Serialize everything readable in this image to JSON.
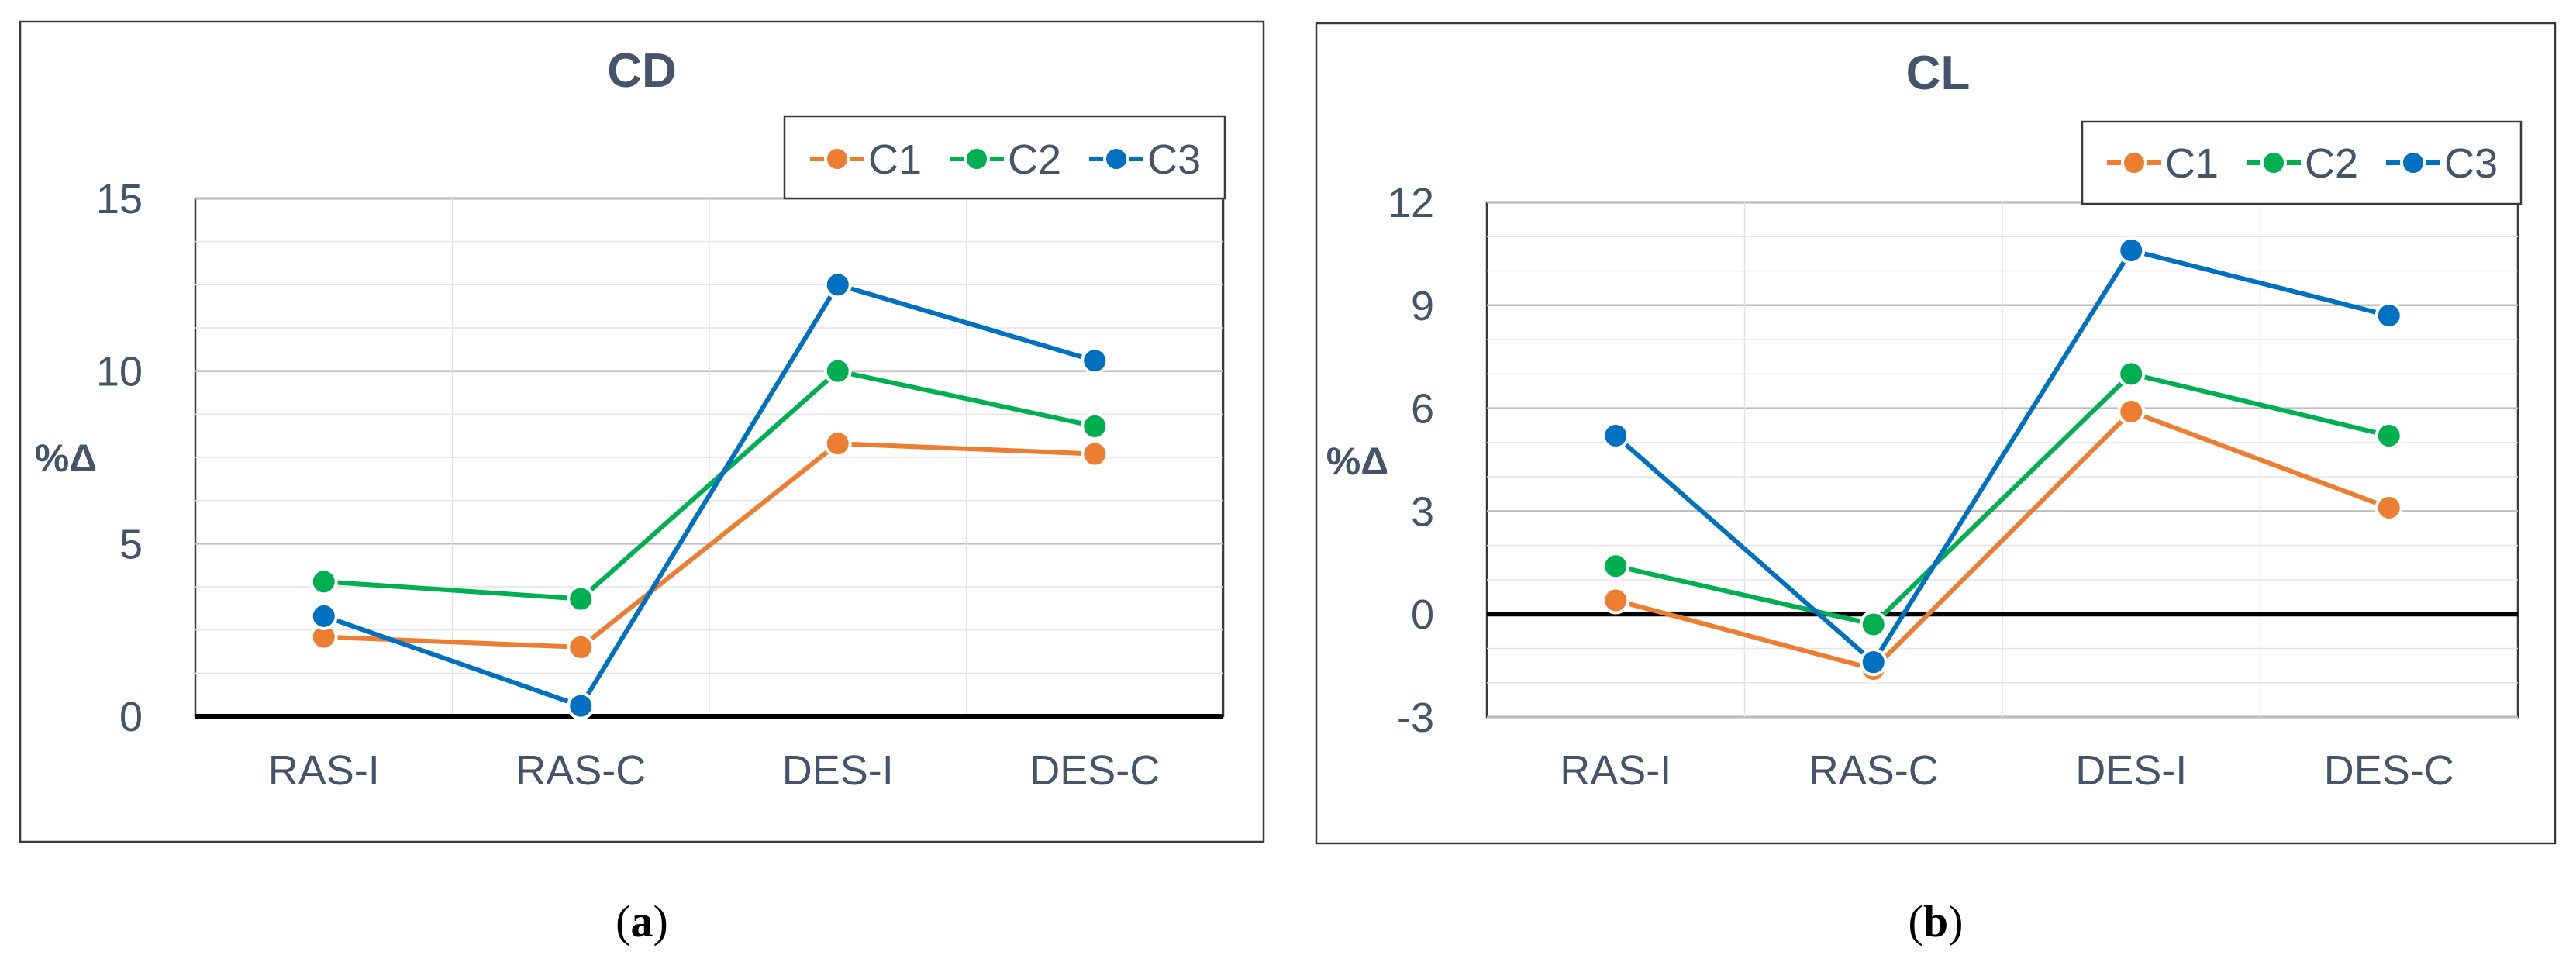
{
  "chart_data": [
    {
      "id": "cd",
      "type": "line",
      "title": "CD",
      "ylabel": "%Δ",
      "xlabel": "",
      "categories": [
        "RAS-I",
        "RAS-C",
        "DES-I",
        "DES-C"
      ],
      "ylim": [
        0,
        15
      ],
      "yticks": [
        0,
        5,
        10,
        15
      ],
      "yticklabels": [
        "0",
        "5",
        "10",
        "15"
      ],
      "minor_step": 1.25,
      "zero_line": 0,
      "grid": true,
      "legend_position": "top-right",
      "series": [
        {
          "name": "C1",
          "color": "#ed7d31",
          "values": [
            2.3,
            2.0,
            7.9,
            7.6
          ]
        },
        {
          "name": "C2",
          "color": "#00b050",
          "values": [
            3.9,
            3.4,
            10.0,
            8.4
          ]
        },
        {
          "name": "C3",
          "color": "#0070c0",
          "values": [
            2.9,
            0.3,
            12.5,
            10.3
          ]
        }
      ],
      "caption": "a"
    },
    {
      "id": "cl",
      "type": "line",
      "title": "CL",
      "ylabel": "%Δ",
      "xlabel": "",
      "categories": [
        "RAS-I",
        "RAS-C",
        "DES-I",
        "DES-C"
      ],
      "ylim": [
        -3,
        12
      ],
      "yticks": [
        -3,
        0,
        3,
        6,
        9,
        12
      ],
      "yticklabels": [
        "-3",
        "0",
        "3",
        "6",
        "9",
        "12"
      ],
      "minor_step": 1,
      "zero_line": 0,
      "grid": true,
      "legend_position": "top-right",
      "series": [
        {
          "name": "C1",
          "color": "#ed7d31",
          "values": [
            0.4,
            -1.6,
            5.9,
            3.1
          ]
        },
        {
          "name": "C2",
          "color": "#00b050",
          "values": [
            1.4,
            -0.3,
            7.0,
            5.2
          ]
        },
        {
          "name": "C3",
          "color": "#0070c0",
          "values": [
            5.2,
            -1.4,
            10.6,
            8.7
          ]
        }
      ],
      "caption": "b"
    }
  ]
}
